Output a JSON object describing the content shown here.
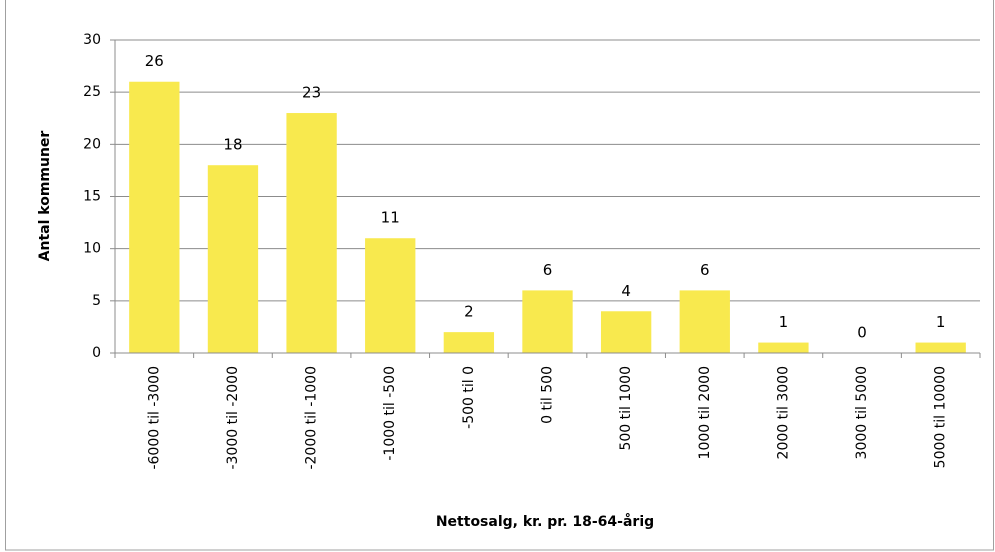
{
  "chart_data": {
    "type": "bar",
    "x_label": "Nettosalg, kr. pr. 18-64-årig",
    "y_label": "Antal kommuner",
    "categories": [
      "-6000 til -3000",
      "-3000 til -2000",
      "-2000 til -1000",
      "-1000 til -500",
      "-500 til 0",
      "0 til 500",
      "500 til 1000",
      "1000 til 2000",
      "2000 til 3000",
      "3000 til 5000",
      "5000 til 10000"
    ],
    "values": [
      26,
      18,
      23,
      11,
      2,
      6,
      4,
      6,
      1,
      0,
      1
    ],
    "color": "#f8e94e",
    "ylim": [
      0,
      30
    ],
    "yticks": [
      0,
      5,
      10,
      15,
      20,
      25,
      30
    ],
    "grid": true
  }
}
